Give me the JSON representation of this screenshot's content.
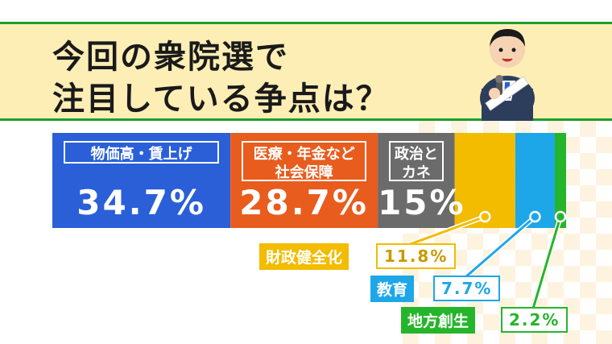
{
  "title": {
    "line1": "今回の衆院選で",
    "line2": "注目している争点は？"
  },
  "colors": {
    "band": "#fdeeb6",
    "frame": "#1e9e2a"
  },
  "chart_data": {
    "type": "bar",
    "orientation": "horizontal-stacked",
    "title": "今回の衆院選で注目している争点は？",
    "unit": "%",
    "categories": [
      "物価高・賃上げ",
      "医療・年金など社会保障",
      "政治とカネ",
      "財政健全化",
      "教育",
      "地方創生"
    ],
    "labels": [
      {
        "lines": [
          "物価高・賃上げ"
        ],
        "value": "34.7%"
      },
      {
        "lines": [
          "医療・年金など",
          "社会保障"
        ],
        "value": "28.7%"
      },
      {
        "lines": [
          "政治と",
          "カネ"
        ],
        "value": "15%"
      },
      {
        "lines": [
          "財政健全化"
        ],
        "value": "11.8%"
      },
      {
        "lines": [
          "教育"
        ],
        "value": "7.7%"
      },
      {
        "lines": [
          "地方創生"
        ],
        "value": "2.2%"
      }
    ],
    "values": [
      34.7,
      28.7,
      15,
      11.8,
      7.7,
      2.2
    ],
    "colors": [
      "#2a5fd8",
      "#e85c1e",
      "#6b6b6b",
      "#f3bc00",
      "#1da7e8",
      "#25b52a"
    ]
  }
}
